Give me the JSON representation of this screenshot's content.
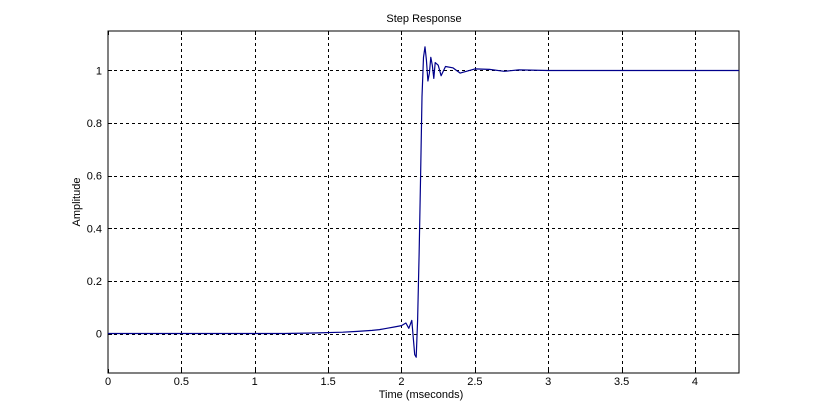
{
  "chart_data": {
    "type": "line",
    "title": "Step Response",
    "xlabel": "Time (mseconds)",
    "ylabel": "Amplitude",
    "xlim": [
      0,
      4.3
    ],
    "ylim": [
      -0.15,
      1.15
    ],
    "grid": true,
    "x_ticks": [
      0,
      0.5,
      1,
      1.5,
      2,
      2.5,
      3,
      3.5,
      4
    ],
    "x_tick_labels": [
      "0",
      "0.5",
      "1",
      "1.5",
      "2",
      "2.5",
      "3",
      "3.5",
      "4"
    ],
    "y_ticks": [
      0,
      0.2,
      0.4,
      0.6,
      0.8,
      1
    ],
    "y_tick_labels": [
      "0",
      "0.2",
      "0.4",
      "0.6",
      "0.8",
      "1"
    ],
    "line_color": "#00008b",
    "series": [
      {
        "x": [
          0,
          1.2,
          1.4,
          1.6,
          1.7,
          1.8,
          1.85,
          1.9,
          1.95,
          2.0,
          2.03,
          2.05,
          2.07,
          2.09,
          2.1,
          2.11,
          2.12,
          2.13,
          2.14,
          2.15,
          2.16,
          2.17,
          2.18,
          2.19,
          2.2,
          2.21,
          2.22,
          2.23,
          2.25,
          2.27,
          2.3,
          2.35,
          2.4,
          2.5,
          2.6,
          2.7,
          2.8,
          3.0,
          3.5,
          4.0,
          4.3
        ],
        "y": [
          0,
          0,
          0.002,
          0.005,
          0.008,
          0.012,
          0.015,
          0.02,
          0.025,
          0.03,
          0.04,
          0.02,
          0.05,
          -0.08,
          -0.09,
          0.05,
          0.3,
          0.6,
          0.9,
          1.05,
          1.09,
          1.04,
          0.96,
          0.99,
          1.05,
          1.02,
          0.97,
          1.03,
          1.02,
          0.98,
          1.015,
          1.01,
          0.99,
          1.006,
          1.004,
          0.997,
          1.002,
          1.0,
          1.0,
          1.0,
          1.0
        ]
      }
    ]
  }
}
